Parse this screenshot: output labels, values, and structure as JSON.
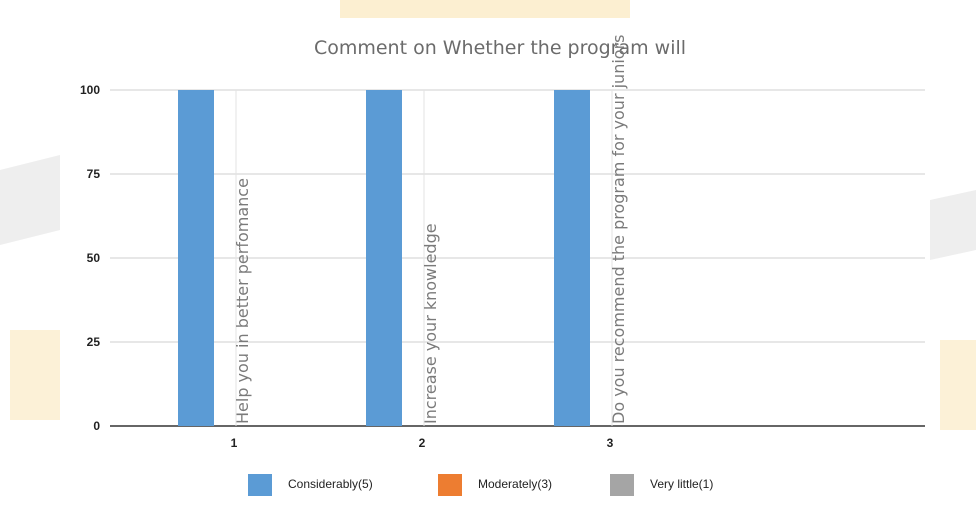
{
  "chart_data": {
    "type": "bar",
    "title": "Comment on Whether the program will",
    "categories": [
      "1",
      "2",
      "3"
    ],
    "category_labels": [
      "Help you in better perfomance",
      "Increase your knowledge",
      "Do you recommend the program for your juniors"
    ],
    "series": [
      {
        "name": "Considerably(5)",
        "values": [
          100,
          100,
          100
        ],
        "color": "#5b9bd5"
      },
      {
        "name": "Moderately(3)",
        "values": [
          0,
          0,
          0
        ],
        "color": "#ed7d31"
      },
      {
        "name": "Very little(1)",
        "values": [
          0,
          0,
          0
        ],
        "color": "#a5a5a5"
      }
    ],
    "yticks": [
      0,
      25,
      50,
      75,
      100
    ],
    "ylim": [
      0,
      100
    ],
    "grid": true,
    "legend_position": "bottom"
  }
}
